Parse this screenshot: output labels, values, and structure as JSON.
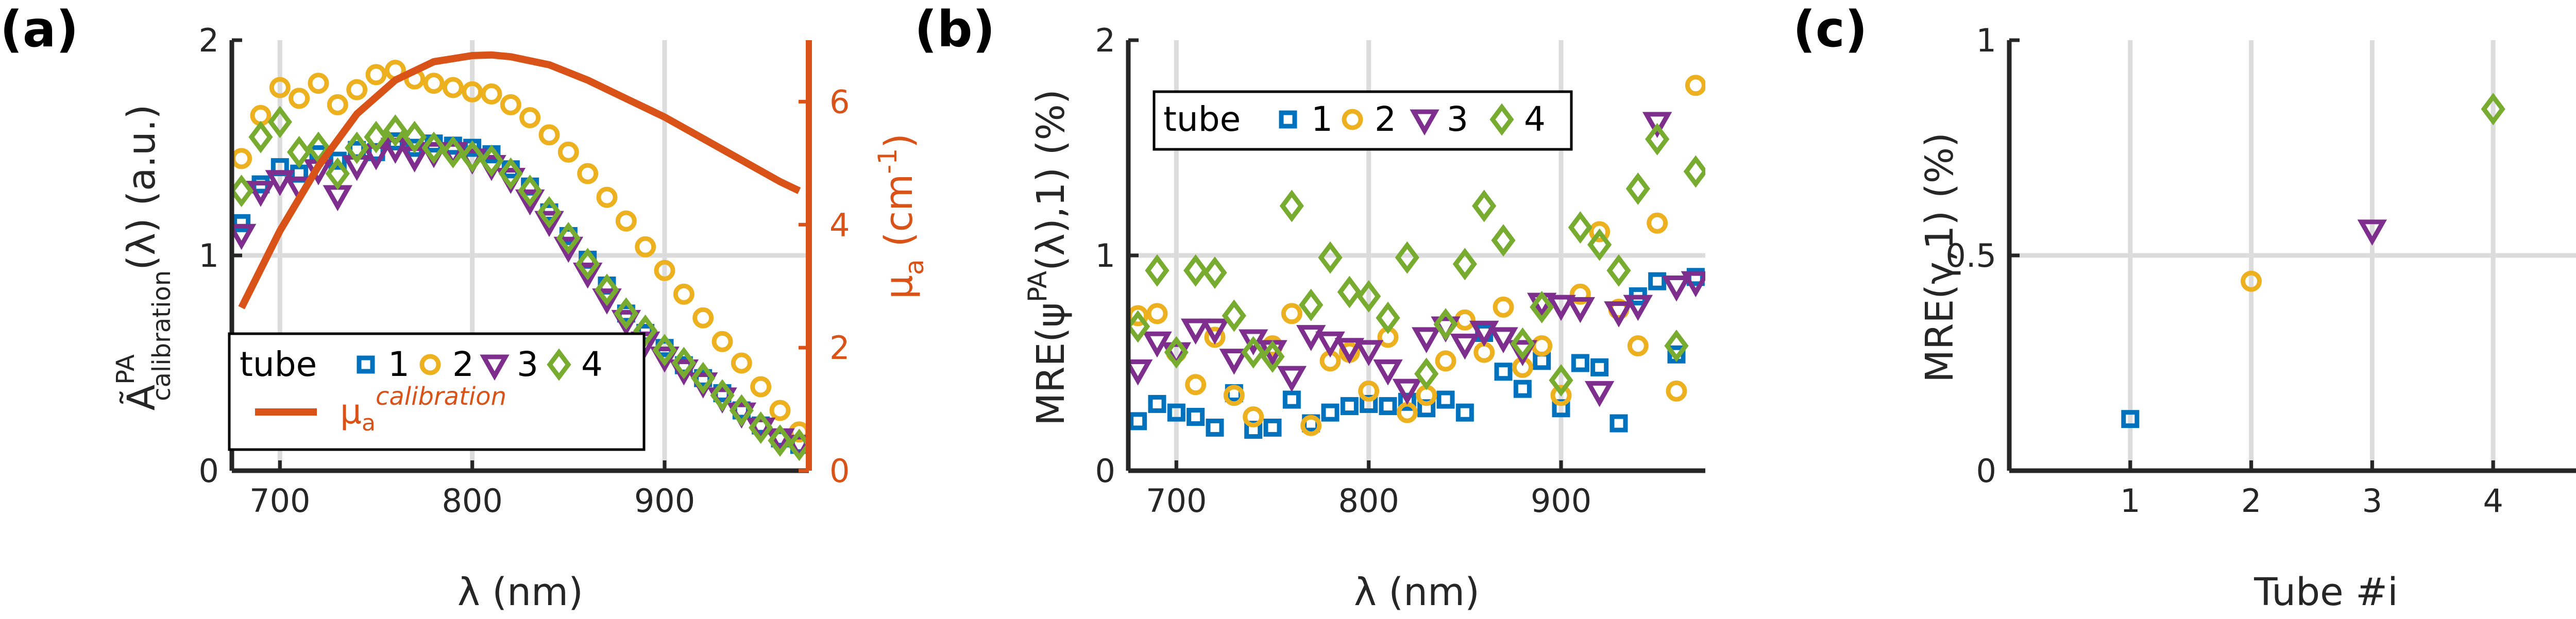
{
  "colors": {
    "tube1": "#0072bd",
    "tube2": "#edb120",
    "tube3": "#7e2f8e",
    "tube4": "#77ac30",
    "mu": "#d95319"
  },
  "chart_data": [
    {
      "type": "scatter",
      "panel_label": "(a)",
      "ylabel_main": "Ã",
      "ylabel_sup": "PA",
      "ylabel_sub": "calibration",
      "ylabel_rest": "(λ) (a.u.)",
      "xlabel": "λ (nm)",
      "xlim": [
        675,
        975
      ],
      "ylim": [
        0,
        2
      ],
      "xticks": [
        "700",
        "800",
        "900"
      ],
      "xtick_values": [
        700,
        800,
        900
      ],
      "yticks": [
        "0",
        "1",
        "2"
      ],
      "ytick_values": [
        0,
        1,
        2
      ],
      "right_axis": {
        "label_main": "μ",
        "label_sub": "a",
        "label_unit": "(cm",
        "label_sup": "-1",
        "label_close": ")",
        "ylim": [
          0,
          7
        ],
        "yticks": [
          "0",
          "2",
          "4",
          "6"
        ],
        "ytick_values": [
          0,
          2,
          4,
          6
        ]
      },
      "legend": {
        "title": "tube",
        "entries": [
          "1",
          "2",
          "3",
          "4"
        ],
        "line_main": "μ",
        "line_sub": "a",
        "line_sup": "calibration"
      },
      "x": [
        680,
        690,
        700,
        710,
        720,
        730,
        740,
        750,
        760,
        770,
        780,
        790,
        800,
        810,
        820,
        830,
        840,
        850,
        860,
        870,
        880,
        890,
        900,
        910,
        920,
        930,
        940,
        950,
        960,
        970
      ],
      "series": [
        {
          "name": "1",
          "values": [
            1.15,
            1.33,
            1.41,
            1.38,
            1.47,
            1.44,
            1.49,
            1.48,
            1.53,
            1.5,
            1.52,
            1.51,
            1.5,
            1.47,
            1.4,
            1.32,
            1.2,
            1.09,
            0.98,
            0.86,
            0.73,
            0.64,
            0.57,
            0.49,
            0.43,
            0.36,
            0.28,
            0.21,
            0.15,
            0.12
          ]
        },
        {
          "name": "2",
          "values": [
            1.45,
            1.65,
            1.78,
            1.73,
            1.8,
            1.7,
            1.77,
            1.84,
            1.86,
            1.82,
            1.8,
            1.78,
            1.76,
            1.75,
            1.7,
            1.64,
            1.56,
            1.48,
            1.38,
            1.27,
            1.16,
            1.04,
            0.93,
            0.82,
            0.71,
            0.6,
            0.5,
            0.39,
            0.28,
            0.18
          ]
        },
        {
          "name": "3",
          "values": [
            1.1,
            1.3,
            1.35,
            1.32,
            1.4,
            1.28,
            1.42,
            1.47,
            1.5,
            1.46,
            1.48,
            1.48,
            1.45,
            1.42,
            1.36,
            1.26,
            1.16,
            1.04,
            0.92,
            0.8,
            0.7,
            0.6,
            0.53,
            0.47,
            0.41,
            0.34,
            0.27,
            0.2,
            0.15,
            0.12
          ]
        },
        {
          "name": "4",
          "values": [
            1.3,
            1.55,
            1.62,
            1.48,
            1.5,
            1.38,
            1.5,
            1.55,
            1.58,
            1.55,
            1.5,
            1.48,
            1.46,
            1.44,
            1.38,
            1.3,
            1.2,
            1.08,
            0.96,
            0.84,
            0.73,
            0.65,
            0.56,
            0.5,
            0.43,
            0.35,
            0.28,
            0.2,
            0.14,
            0.12
          ]
        }
      ],
      "mu_curve": {
        "name": "μa calibration",
        "x": [
          680,
          700,
          720,
          740,
          760,
          780,
          800,
          810,
          820,
          840,
          860,
          880,
          900,
          920,
          940,
          960,
          970
        ],
        "values": [
          2.65,
          3.9,
          4.95,
          5.8,
          6.35,
          6.65,
          6.75,
          6.76,
          6.73,
          6.6,
          6.35,
          6.05,
          5.75,
          5.4,
          5.05,
          4.7,
          4.55
        ]
      }
    },
    {
      "type": "scatter",
      "panel_label": "(b)",
      "ylabel_main": "MRE(ψ",
      "ylabel_sup": "PA",
      "ylabel_rest": "(λ),1) (%)",
      "xlabel": "λ (nm)",
      "xlim": [
        675,
        975
      ],
      "ylim": [
        0,
        2
      ],
      "xticks": [
        "700",
        "800",
        "900"
      ],
      "xtick_values": [
        700,
        800,
        900
      ],
      "yticks": [
        "0",
        "1",
        "2"
      ],
      "ytick_values": [
        0,
        1,
        2
      ],
      "legend": {
        "title": "tube",
        "entries": [
          "1",
          "2",
          "3",
          "4"
        ]
      },
      "x": [
        680,
        690,
        700,
        710,
        720,
        730,
        740,
        750,
        760,
        770,
        780,
        790,
        800,
        810,
        820,
        830,
        840,
        850,
        860,
        870,
        880,
        890,
        900,
        910,
        920,
        930,
        940,
        950,
        960,
        970
      ],
      "series": [
        {
          "name": "1",
          "values": [
            0.23,
            0.31,
            0.27,
            0.25,
            0.2,
            0.36,
            0.19,
            0.2,
            0.33,
            0.22,
            0.27,
            0.3,
            0.31,
            0.3,
            0.32,
            0.29,
            0.33,
            0.27,
            0.64,
            0.46,
            0.38,
            0.51,
            0.29,
            0.5,
            0.48,
            0.22,
            0.81,
            0.88,
            0.54,
            0.9
          ]
        },
        {
          "name": "2",
          "values": [
            0.72,
            0.73,
            0.55,
            0.4,
            0.62,
            0.35,
            0.25,
            0.58,
            0.73,
            0.21,
            0.51,
            0.55,
            0.37,
            0.62,
            0.27,
            0.35,
            0.51,
            0.7,
            0.55,
            0.76,
            0.48,
            0.58,
            0.35,
            0.82,
            1.11,
            0.75,
            0.58,
            1.15,
            0.37,
            1.79
          ]
        },
        {
          "name": "3",
          "values": [
            0.47,
            0.6,
            0.55,
            0.66,
            0.66,
            0.52,
            0.61,
            0.56,
            0.44,
            0.63,
            0.6,
            0.57,
            0.56,
            0.47,
            0.38,
            0.62,
            0.67,
            0.59,
            0.65,
            0.62,
            0.56,
            0.78,
            0.77,
            0.76,
            0.37,
            0.74,
            0.77,
            1.62,
            0.86,
            0.88
          ]
        },
        {
          "name": "4",
          "values": [
            0.67,
            0.93,
            0.55,
            0.93,
            0.92,
            0.72,
            0.55,
            0.53,
            1.23,
            0.77,
            0.99,
            0.83,
            0.81,
            0.71,
            0.99,
            0.45,
            0.68,
            0.96,
            1.23,
            1.07,
            0.59,
            0.76,
            0.42,
            1.13,
            1.05,
            0.93,
            1.31,
            1.54,
            0.58,
            1.39
          ]
        }
      ]
    },
    {
      "type": "scatter",
      "panel_label": "(c)",
      "ylabel": "MRE(γ,1) (%)",
      "xlabel": "Tube #i",
      "xlim": [
        0,
        5
      ],
      "ylim": [
        0,
        1
      ],
      "xticks": [
        "1",
        "2",
        "3",
        "4"
      ],
      "xtick_values": [
        1,
        2,
        3,
        4
      ],
      "yticks": [
        "0",
        "0.5",
        "1"
      ],
      "ytick_values": [
        0,
        0.5,
        1
      ],
      "series": [
        {
          "name": "1",
          "x": 1,
          "value": 0.12
        },
        {
          "name": "2",
          "x": 2,
          "value": 0.44
        },
        {
          "name": "3",
          "x": 3,
          "value": 0.56
        },
        {
          "name": "4",
          "x": 4,
          "value": 0.84
        }
      ]
    }
  ]
}
